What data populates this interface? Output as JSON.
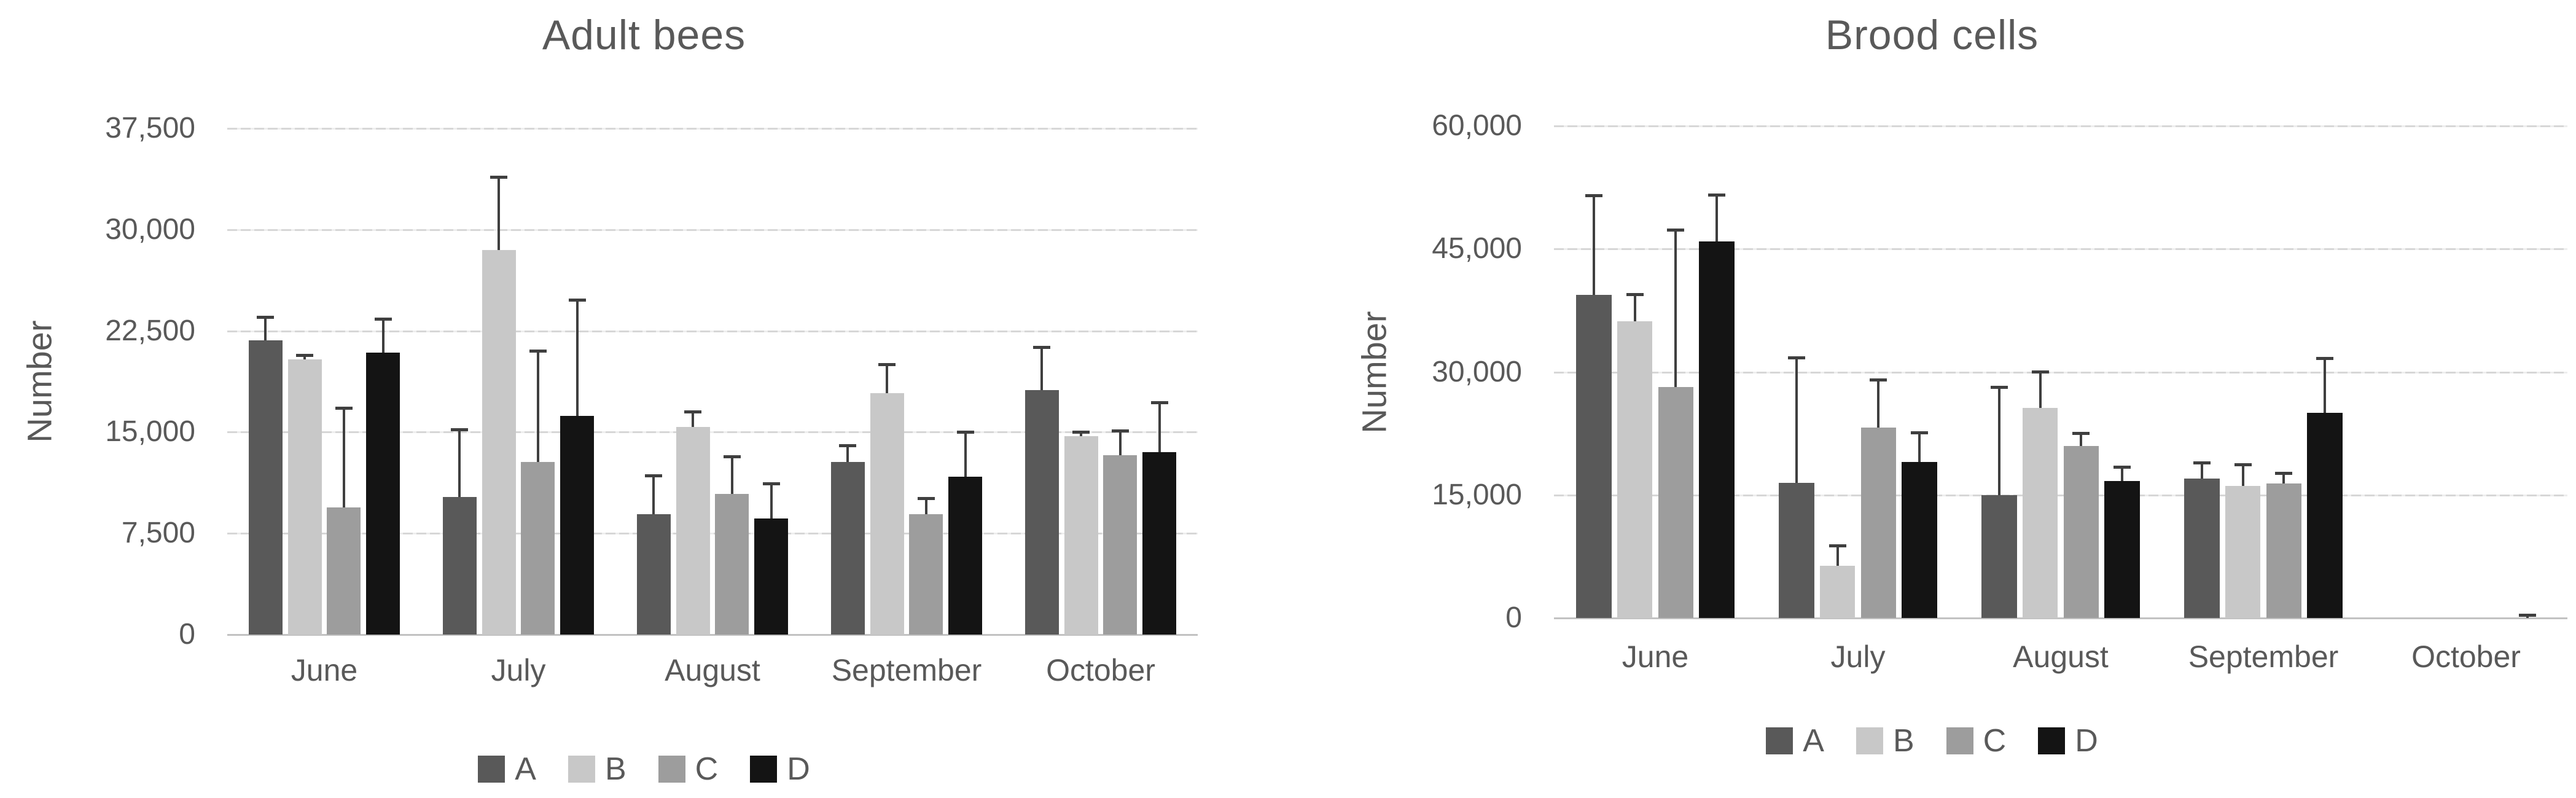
{
  "figure": {
    "background": "#ffffff",
    "text_color": "#595959",
    "gridline_color": "#d7d7d7",
    "axis_line_color": "#c2c2c2",
    "error_bar_color": "#3f3f3f"
  },
  "chart_data": [
    {
      "type": "bar",
      "title": "Adult bees",
      "ylabel": "Number",
      "xlabel": "",
      "ylim": [
        0,
        37500
      ],
      "yticks": [
        0,
        7500,
        15000,
        22500,
        30000,
        37500
      ],
      "ytick_labels": [
        "0",
        "7,500",
        "15,000",
        "22,500",
        "30,000",
        "37,500"
      ],
      "categories": [
        "June",
        "July",
        "August",
        "September",
        "October"
      ],
      "grid": true,
      "legend_position": "bottom",
      "error_bars": "upper",
      "series": [
        {
          "name": "A",
          "color": "#595959",
          "values": [
            21800,
            10200,
            8900,
            12800,
            18100
          ],
          "error_up": [
            1800,
            5100,
            3000,
            1300,
            3300
          ]
        },
        {
          "name": "B",
          "color": "#c8c8c8",
          "values": [
            20400,
            28500,
            15400,
            17900,
            14700
          ],
          "error_up": [
            400,
            5500,
            1200,
            2200,
            400
          ]
        },
        {
          "name": "C",
          "color": "#9d9d9d",
          "values": [
            9400,
            12800,
            10400,
            8900,
            13300
          ],
          "error_up": [
            7500,
            8300,
            2900,
            1300,
            1900
          ]
        },
        {
          "name": "D",
          "color": "#141414",
          "values": [
            20900,
            16200,
            8600,
            11700,
            13500
          ],
          "error_up": [
            2600,
            8700,
            2700,
            3400,
            3800
          ]
        }
      ]
    },
    {
      "type": "bar",
      "title": "Brood cells",
      "ylabel": "Number",
      "xlabel": "",
      "ylim": [
        0,
        60000
      ],
      "yticks": [
        0,
        15000,
        30000,
        45000,
        60000
      ],
      "ytick_labels": [
        "0",
        "15,000",
        "30,000",
        "45,000",
        "60,000"
      ],
      "categories": [
        "June",
        "July",
        "August",
        "September",
        "October"
      ],
      "grid": true,
      "legend_position": "bottom",
      "error_bars": "upper",
      "series": [
        {
          "name": "A",
          "color": "#595959",
          "values": [
            39400,
            16500,
            15000,
            17000,
            0
          ],
          "error_up": [
            12300,
            15400,
            13300,
            2100,
            0
          ]
        },
        {
          "name": "B",
          "color": "#c8c8c8",
          "values": [
            36200,
            6400,
            25600,
            16100,
            0
          ],
          "error_up": [
            3400,
            2600,
            4600,
            2800,
            0
          ]
        },
        {
          "name": "C",
          "color": "#9d9d9d",
          "values": [
            28200,
            23200,
            21000,
            16400,
            0
          ],
          "error_up": [
            19300,
            6000,
            1700,
            1400,
            0
          ]
        },
        {
          "name": "D",
          "color": "#141414",
          "values": [
            45900,
            19000,
            16700,
            25000,
            0
          ],
          "error_up": [
            5900,
            3800,
            1900,
            6800,
            500
          ]
        }
      ]
    }
  ]
}
